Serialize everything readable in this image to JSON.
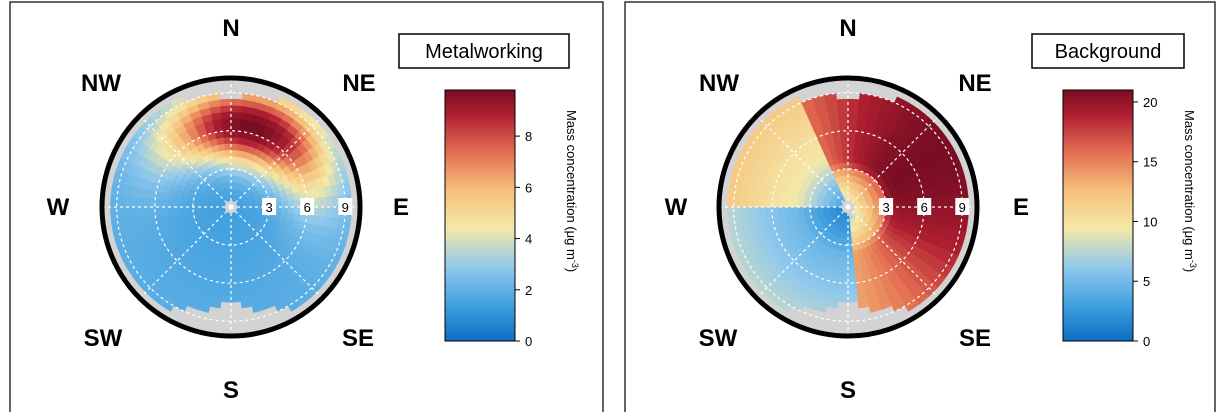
{
  "chart_data": [
    {
      "type": "polar-heatmap",
      "site": "Metalworking",
      "compass": [
        "N",
        "NE",
        "E",
        "SE",
        "S",
        "SW",
        "W",
        "NW"
      ],
      "radial_ticks": [
        3,
        6,
        9
      ],
      "rmax": 10,
      "colorbar": {
        "title": "Mass concentration (μg m-3)",
        "title_main": "Mass concentration (μg m",
        "title_sup": "-3",
        "title_end": ")",
        "min": 0,
        "max": 9.8,
        "ticks": [
          0,
          2,
          4,
          6,
          8
        ],
        "tick_labels": [
          "0",
          "2",
          "4",
          "6",
          "8"
        ]
      },
      "hotspot": {
        "direction_deg": 15,
        "radius": 6.5,
        "peak": 9.6
      },
      "background_level": 1.4
    },
    {
      "type": "polar-heatmap",
      "site": "Background",
      "compass": [
        "N",
        "NE",
        "E",
        "SE",
        "S",
        "SW",
        "W",
        "NW"
      ],
      "radial_ticks": [
        3,
        6,
        9
      ],
      "rmax": 10,
      "colorbar": {
        "title": "Mass concentration (μg m-3)",
        "title_main": "Mass concentration (μg m",
        "title_sup": "-3",
        "title_end": ")",
        "min": 0,
        "max": 21,
        "ticks": [
          0,
          5,
          10,
          15,
          20
        ],
        "tick_labels": [
          "0",
          "5",
          "10",
          "15",
          "20"
        ]
      },
      "hotspot": {
        "direction_deg": 60,
        "radius": 6.5,
        "peak": 20.5
      },
      "background_level": 3
    }
  ],
  "colors": {
    "scale": [
      "#0a6fc2",
      "#3f9fde",
      "#8ec8ec",
      "#f5e8a8",
      "#f5c07a",
      "#e46f52",
      "#b01f32",
      "#7a0d22"
    ],
    "no_data": "#d3d3d3",
    "grid": "#ffffff"
  }
}
